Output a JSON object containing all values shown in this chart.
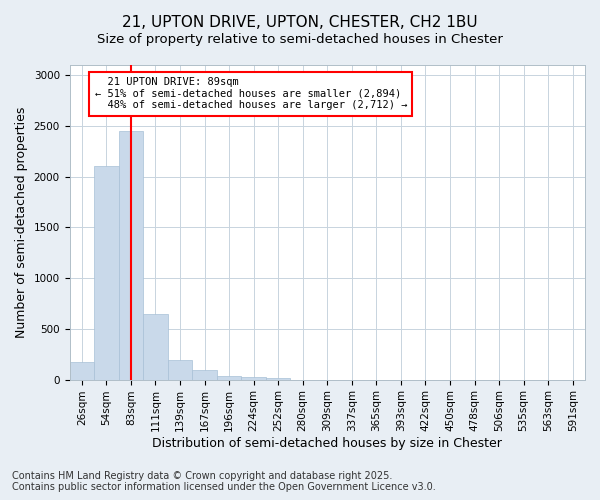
{
  "title_line1": "21, UPTON DRIVE, UPTON, CHESTER, CH2 1BU",
  "title_line2": "Size of property relative to semi-detached houses in Chester",
  "xlabel": "Distribution of semi-detached houses by size in Chester",
  "ylabel": "Number of semi-detached properties",
  "bar_color": "#c9d9ea",
  "bar_edge_color": "#a8c0d6",
  "categories": [
    "26sqm",
    "54sqm",
    "83sqm",
    "111sqm",
    "139sqm",
    "167sqm",
    "196sqm",
    "224sqm",
    "252sqm",
    "280sqm",
    "309sqm",
    "337sqm",
    "365sqm",
    "393sqm",
    "422sqm",
    "450sqm",
    "478sqm",
    "506sqm",
    "535sqm",
    "563sqm",
    "591sqm"
  ],
  "values": [
    175,
    2100,
    2450,
    650,
    190,
    90,
    40,
    30,
    20,
    0,
    0,
    0,
    0,
    0,
    0,
    0,
    0,
    0,
    0,
    0,
    0
  ],
  "ylim": [
    0,
    3100
  ],
  "yticks": [
    0,
    500,
    1000,
    1500,
    2000,
    2500,
    3000
  ],
  "property_label": "21 UPTON DRIVE: 89sqm",
  "smaller_pct": "51%",
  "smaller_count": "2,894",
  "larger_pct": "48%",
  "larger_count": "2,712",
  "red_line_x": 2.0,
  "footer_line1": "Contains HM Land Registry data © Crown copyright and database right 2025.",
  "footer_line2": "Contains public sector information licensed under the Open Government Licence v3.0.",
  "background_color": "#e8eef4",
  "plot_background": "#ffffff",
  "grid_color": "#c8d4de",
  "title_fontsize": 11,
  "subtitle_fontsize": 9.5,
  "axis_label_fontsize": 9,
  "tick_fontsize": 7.5,
  "footer_fontsize": 7
}
